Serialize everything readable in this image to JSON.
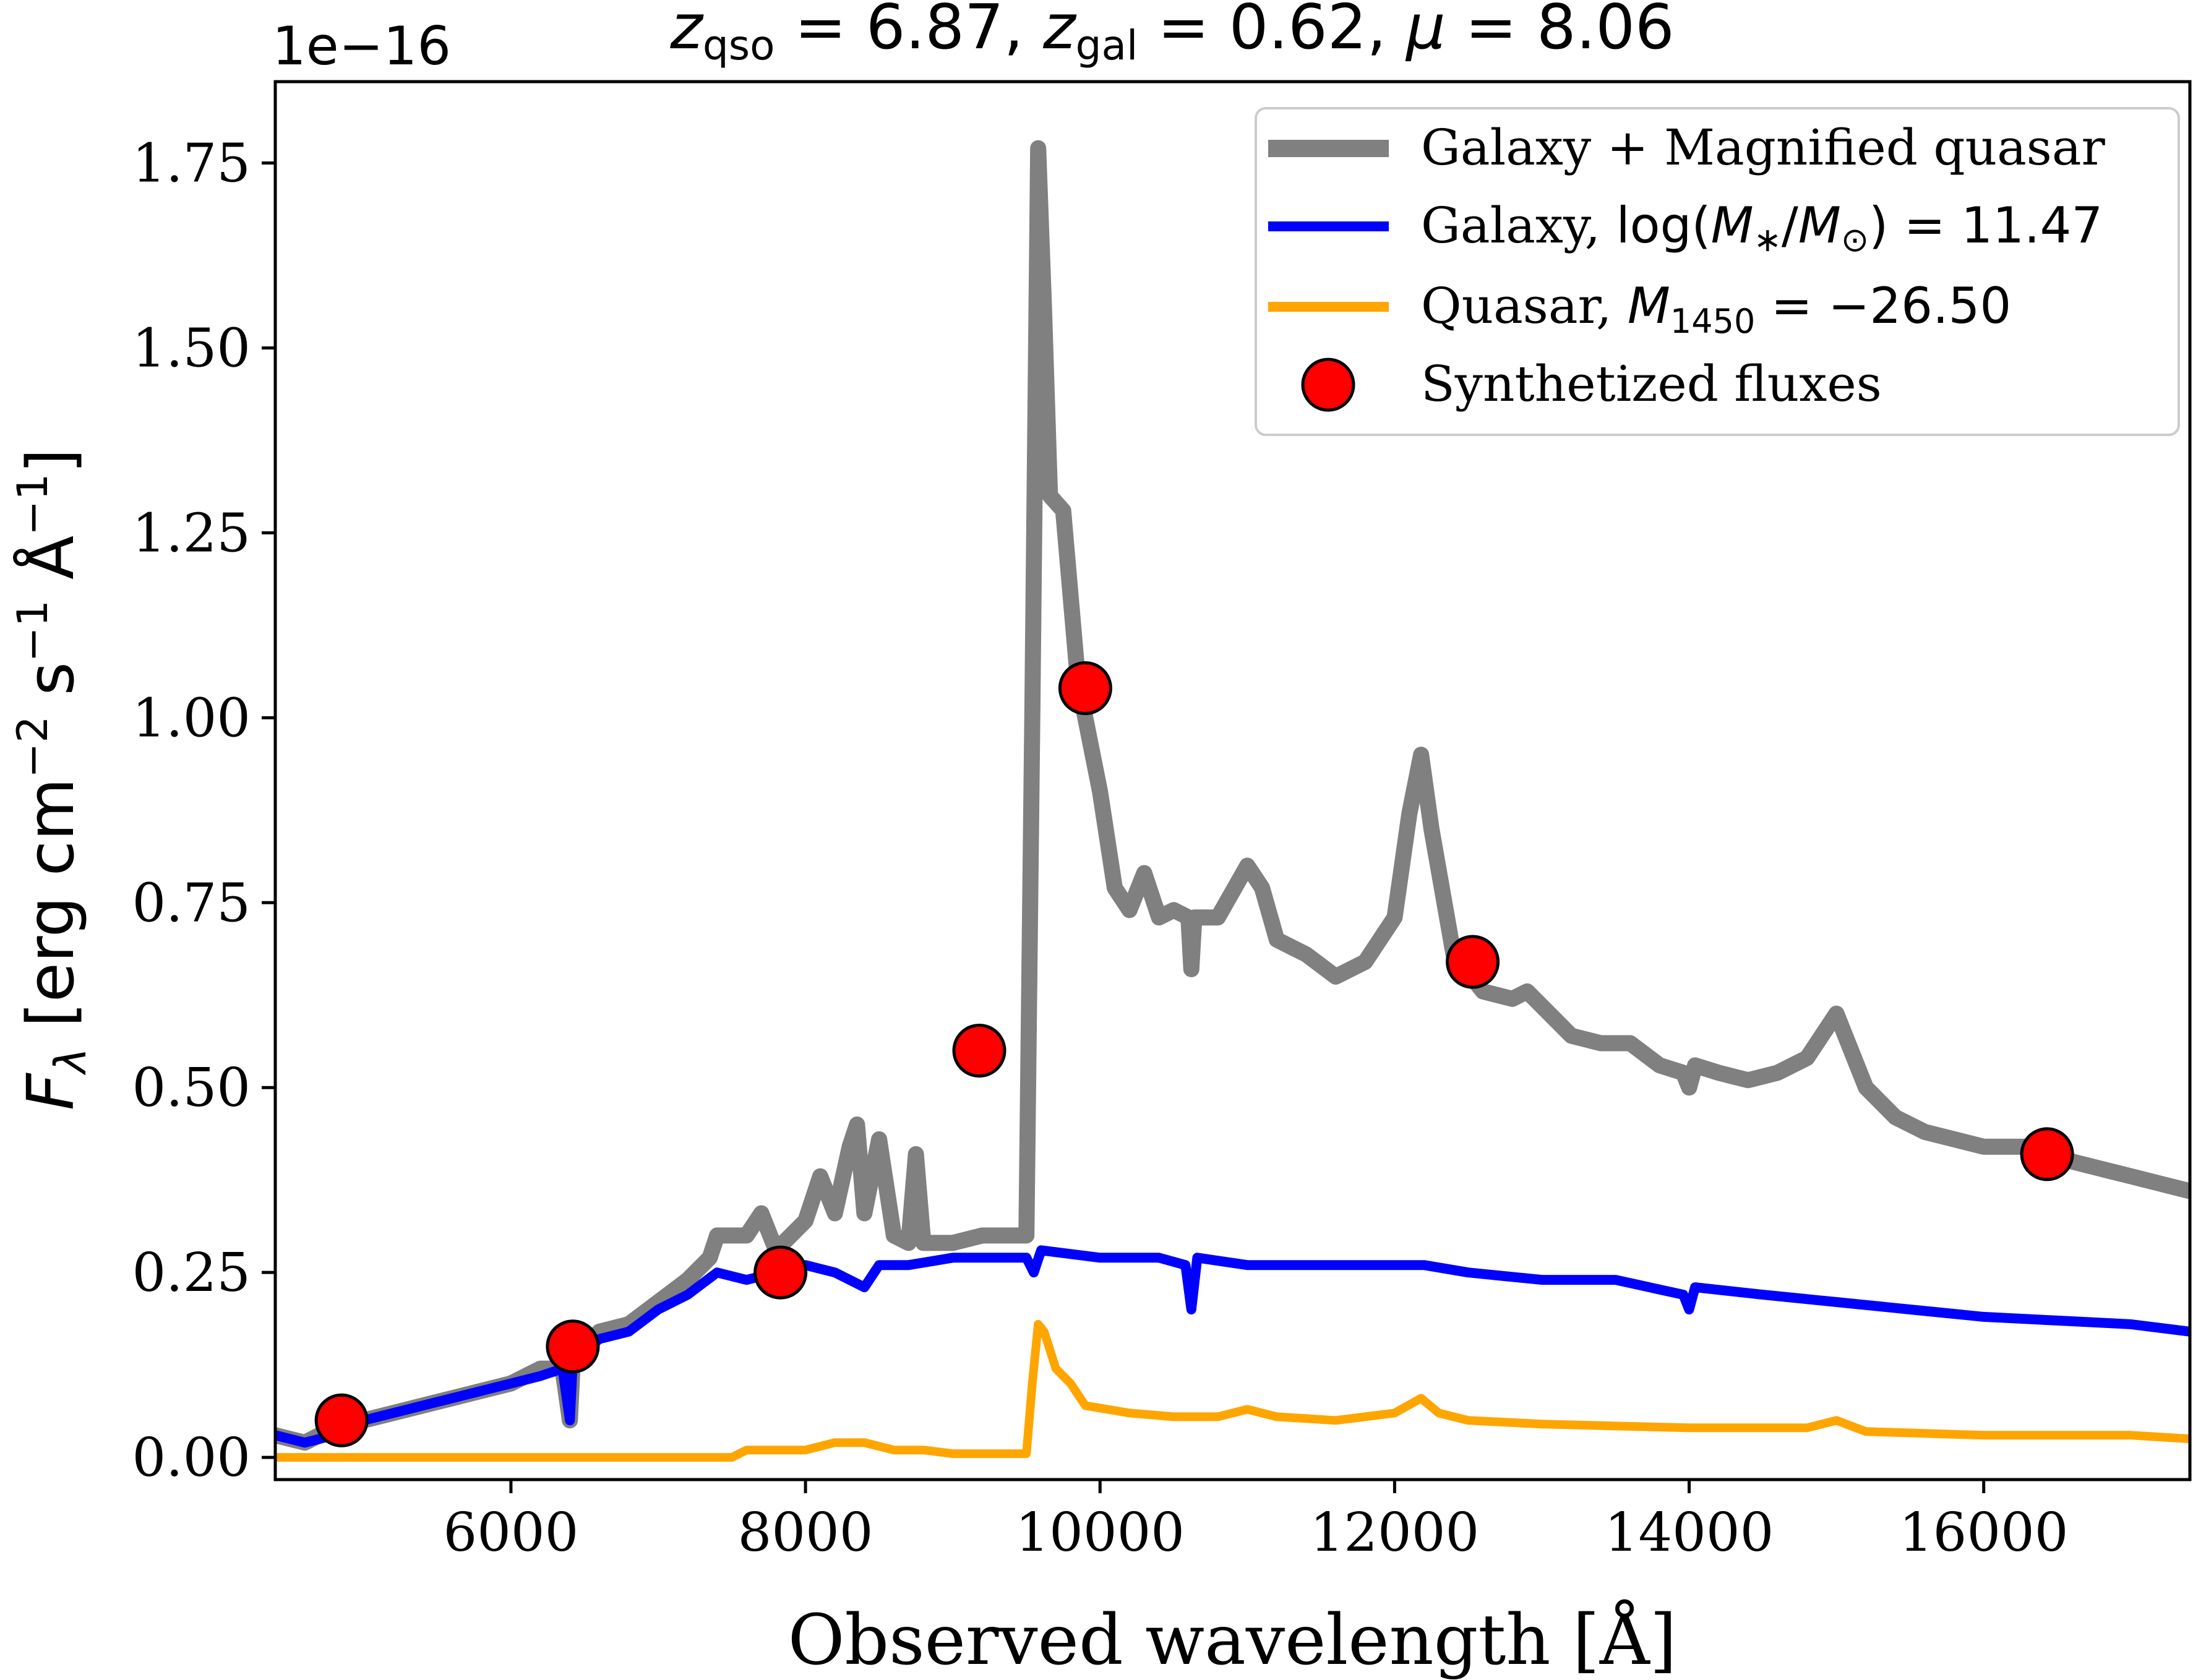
{
  "chart_data": {
    "type": "line",
    "title": "z_qso = 6.87, z_gal = 0.62, μ = 8.06",
    "title_parts": {
      "z_qso_value": "6.87",
      "z_gal_value": "0.62",
      "mu_value": "8.06"
    },
    "offset_text": "1e−16",
    "xlabel": "Observed wavelength [Å]",
    "ylabel": "F_λ [erg cm^−2 s^−1 Å^−1]",
    "xlim": [
      4400,
      17400
    ],
    "ylim": [
      -0.03,
      1.86
    ],
    "y_scale_factor": 1e-16,
    "grid": false,
    "legend_position": "top-right",
    "x_ticks": [
      6000,
      8000,
      10000,
      12000,
      14000,
      16000
    ],
    "x_tick_labels": [
      "6000",
      "8000",
      "10000",
      "12000",
      "14000",
      "16000"
    ],
    "y_ticks": [
      0.0,
      0.25,
      0.5,
      0.75,
      1.0,
      1.25,
      1.5,
      1.75
    ],
    "y_tick_labels": [
      "0.00",
      "0.25",
      "0.50",
      "0.75",
      "1.00",
      "1.25",
      "1.50",
      "1.75"
    ],
    "legend_entries": [
      "Galaxy + Magnified quasar",
      "Galaxy, log(M*/M☉) = 11.47",
      "Quasar, M1450 = −26.50",
      "Synthetized fluxes"
    ],
    "series": [
      {
        "name": "Galaxy + Magnified quasar",
        "color": "#808080",
        "points": [
          [
            4400,
            0.03
          ],
          [
            4600,
            0.02
          ],
          [
            4800,
            0.04
          ],
          [
            5000,
            0.05
          ],
          [
            5200,
            0.06
          ],
          [
            5400,
            0.07
          ],
          [
            5600,
            0.08
          ],
          [
            5800,
            0.09
          ],
          [
            6000,
            0.1
          ],
          [
            6200,
            0.12
          ],
          [
            6350,
            0.12
          ],
          [
            6400,
            0.05
          ],
          [
            6420,
            0.13
          ],
          [
            6600,
            0.17
          ],
          [
            6800,
            0.18
          ],
          [
            7000,
            0.21
          ],
          [
            7200,
            0.24
          ],
          [
            7350,
            0.27
          ],
          [
            7400,
            0.3
          ],
          [
            7600,
            0.3
          ],
          [
            7700,
            0.33
          ],
          [
            7800,
            0.28
          ],
          [
            8000,
            0.32
          ],
          [
            8100,
            0.38
          ],
          [
            8200,
            0.33
          ],
          [
            8300,
            0.42
          ],
          [
            8350,
            0.45
          ],
          [
            8400,
            0.33
          ],
          [
            8500,
            0.43
          ],
          [
            8600,
            0.3
          ],
          [
            8700,
            0.29
          ],
          [
            8750,
            0.41
          ],
          [
            8800,
            0.29
          ],
          [
            9000,
            0.29
          ],
          [
            9200,
            0.3
          ],
          [
            9400,
            0.3
          ],
          [
            9500,
            0.3
          ],
          [
            9540,
            1.0
          ],
          [
            9580,
            1.77
          ],
          [
            9620,
            1.55
          ],
          [
            9660,
            1.3
          ],
          [
            9750,
            1.28
          ],
          [
            9850,
            1.05
          ],
          [
            10000,
            0.9
          ],
          [
            10100,
            0.77
          ],
          [
            10200,
            0.74
          ],
          [
            10300,
            0.79
          ],
          [
            10400,
            0.73
          ],
          [
            10500,
            0.74
          ],
          [
            10600,
            0.73
          ],
          [
            10620,
            0.66
          ],
          [
            10640,
            0.73
          ],
          [
            10800,
            0.73
          ],
          [
            11000,
            0.8
          ],
          [
            11100,
            0.77
          ],
          [
            11200,
            0.7
          ],
          [
            11400,
            0.68
          ],
          [
            11600,
            0.65
          ],
          [
            11800,
            0.67
          ],
          [
            12000,
            0.73
          ],
          [
            12100,
            0.87
          ],
          [
            12180,
            0.95
          ],
          [
            12250,
            0.85
          ],
          [
            12400,
            0.68
          ],
          [
            12600,
            0.63
          ],
          [
            12800,
            0.62
          ],
          [
            12900,
            0.63
          ],
          [
            13000,
            0.61
          ],
          [
            13200,
            0.57
          ],
          [
            13400,
            0.56
          ],
          [
            13600,
            0.56
          ],
          [
            13800,
            0.53
          ],
          [
            13960,
            0.52
          ],
          [
            14000,
            0.5
          ],
          [
            14040,
            0.53
          ],
          [
            14200,
            0.52
          ],
          [
            14400,
            0.51
          ],
          [
            14600,
            0.52
          ],
          [
            14800,
            0.54
          ],
          [
            15000,
            0.6
          ],
          [
            15200,
            0.5
          ],
          [
            15400,
            0.46
          ],
          [
            15600,
            0.44
          ],
          [
            15800,
            0.43
          ],
          [
            16000,
            0.42
          ],
          [
            16200,
            0.42
          ],
          [
            16400,
            0.42
          ],
          [
            16600,
            0.4
          ],
          [
            17000,
            0.38
          ],
          [
            17400,
            0.36
          ]
        ]
      },
      {
        "name": "Galaxy, log(M*/M☉) = 11.47",
        "color": "#0000ff",
        "points": [
          [
            4400,
            0.03
          ],
          [
            4600,
            0.02
          ],
          [
            4800,
            0.03
          ],
          [
            5000,
            0.05
          ],
          [
            5200,
            0.06
          ],
          [
            5400,
            0.07
          ],
          [
            5600,
            0.08
          ],
          [
            5800,
            0.09
          ],
          [
            6000,
            0.1
          ],
          [
            6200,
            0.11
          ],
          [
            6350,
            0.12
          ],
          [
            6400,
            0.05
          ],
          [
            6420,
            0.13
          ],
          [
            6600,
            0.16
          ],
          [
            6800,
            0.17
          ],
          [
            7000,
            0.2
          ],
          [
            7200,
            0.22
          ],
          [
            7400,
            0.25
          ],
          [
            7600,
            0.24
          ],
          [
            7800,
            0.25
          ],
          [
            8000,
            0.26
          ],
          [
            8200,
            0.25
          ],
          [
            8400,
            0.23
          ],
          [
            8500,
            0.26
          ],
          [
            8700,
            0.26
          ],
          [
            9000,
            0.27
          ],
          [
            9200,
            0.27
          ],
          [
            9500,
            0.27
          ],
          [
            9550,
            0.25
          ],
          [
            9600,
            0.28
          ],
          [
            10000,
            0.27
          ],
          [
            10400,
            0.27
          ],
          [
            10580,
            0.26
          ],
          [
            10620,
            0.2
          ],
          [
            10660,
            0.27
          ],
          [
            11000,
            0.26
          ],
          [
            11400,
            0.26
          ],
          [
            12000,
            0.26
          ],
          [
            12200,
            0.26
          ],
          [
            12500,
            0.25
          ],
          [
            13000,
            0.24
          ],
          [
            13500,
            0.24
          ],
          [
            13960,
            0.22
          ],
          [
            14000,
            0.2
          ],
          [
            14040,
            0.23
          ],
          [
            14500,
            0.22
          ],
          [
            15000,
            0.21
          ],
          [
            15500,
            0.2
          ],
          [
            16000,
            0.19
          ],
          [
            16500,
            0.185
          ],
          [
            17000,
            0.18
          ],
          [
            17400,
            0.17
          ]
        ]
      },
      {
        "name": "Quasar, M1450 = −26.50",
        "color": "#ffa500",
        "points": [
          [
            4400,
            0.0
          ],
          [
            7500,
            0.0
          ],
          [
            7600,
            0.01
          ],
          [
            8000,
            0.01
          ],
          [
            8200,
            0.02
          ],
          [
            8400,
            0.02
          ],
          [
            8600,
            0.01
          ],
          [
            8800,
            0.01
          ],
          [
            9000,
            0.005
          ],
          [
            9500,
            0.005
          ],
          [
            9540,
            0.1
          ],
          [
            9580,
            0.18
          ],
          [
            9620,
            0.17
          ],
          [
            9700,
            0.12
          ],
          [
            9800,
            0.1
          ],
          [
            9900,
            0.07
          ],
          [
            10200,
            0.06
          ],
          [
            10500,
            0.055
          ],
          [
            10800,
            0.055
          ],
          [
            11000,
            0.065
          ],
          [
            11200,
            0.055
          ],
          [
            11600,
            0.05
          ],
          [
            12000,
            0.06
          ],
          [
            12180,
            0.08
          ],
          [
            12300,
            0.06
          ],
          [
            12500,
            0.05
          ],
          [
            13000,
            0.045
          ],
          [
            14000,
            0.04
          ],
          [
            14800,
            0.04
          ],
          [
            15000,
            0.05
          ],
          [
            15200,
            0.035
          ],
          [
            16000,
            0.03
          ],
          [
            17000,
            0.03
          ],
          [
            17400,
            0.025
          ]
        ]
      }
    ],
    "synthetized_fluxes": {
      "name": "Synthetized fluxes",
      "color": "#ff0000",
      "x": [
        4850,
        6420,
        7830,
        9180,
        9900,
        12530,
        16430
      ],
      "y": [
        0.05,
        0.15,
        0.25,
        0.55,
        1.04,
        0.67,
        0.41
      ]
    }
  }
}
